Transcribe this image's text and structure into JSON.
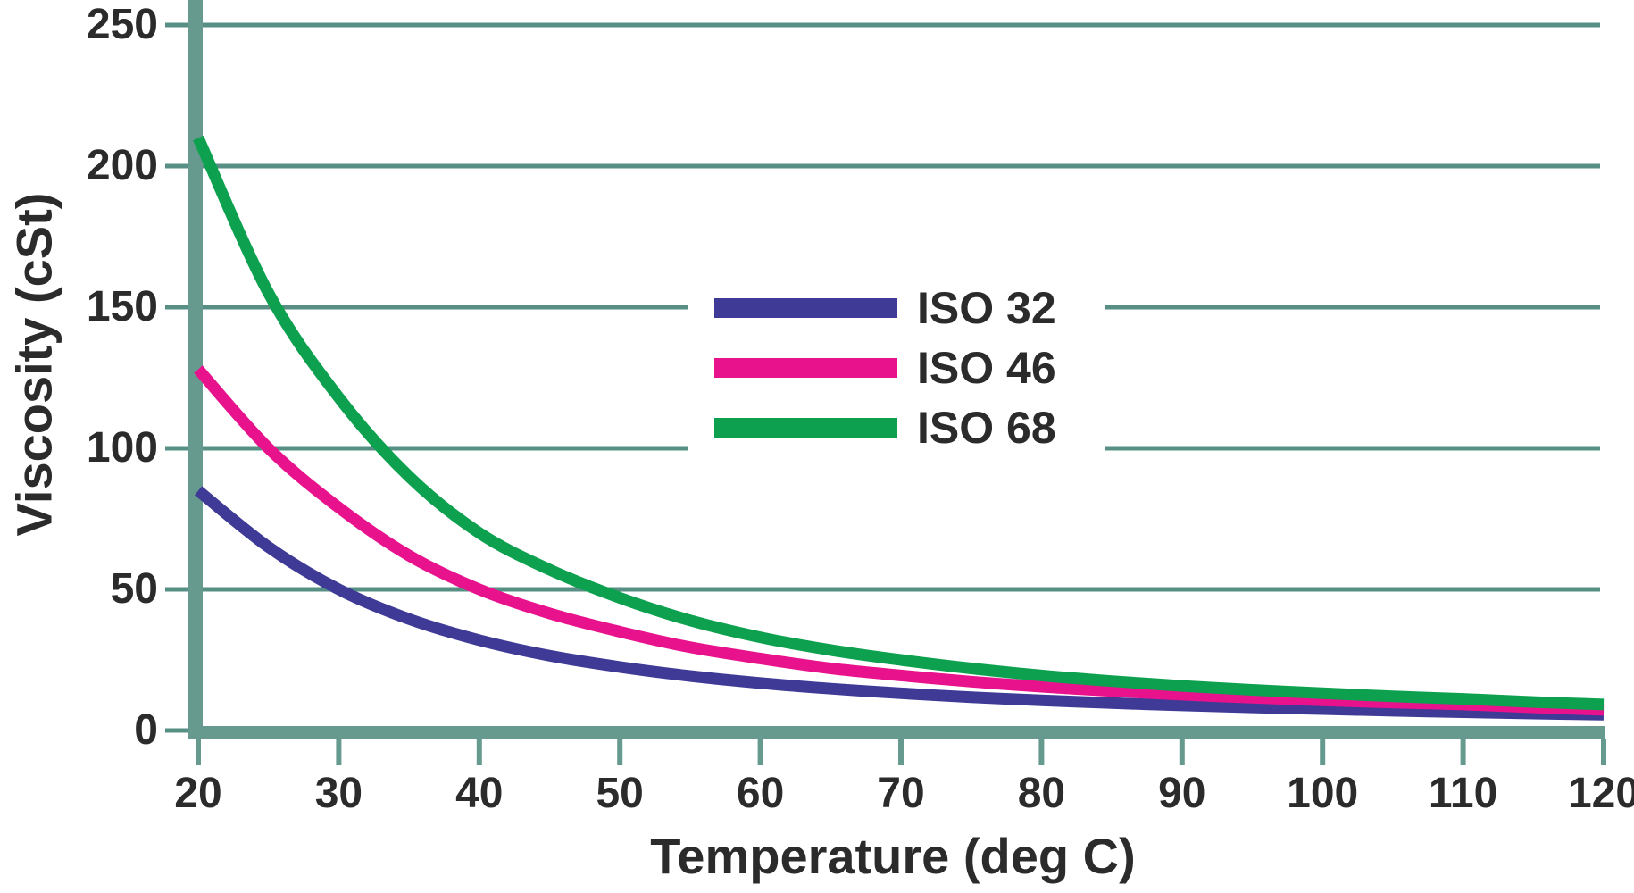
{
  "chart_data": {
    "type": "line",
    "title": "",
    "xlabel": "Temperature (deg C)",
    "ylabel": "Viscosity (cSt)",
    "xlim": [
      20,
      120
    ],
    "ylim": [
      0,
      250
    ],
    "xticks": [
      20,
      30,
      40,
      50,
      60,
      70,
      80,
      90,
      100,
      110,
      120
    ],
    "yticks": [
      0,
      50,
      100,
      150,
      200,
      250
    ],
    "grid": "horizontal",
    "legend_position": "upper-center",
    "x": [
      20,
      25,
      30,
      35,
      40,
      45,
      50,
      55,
      60,
      65,
      70,
      75,
      80,
      85,
      90,
      95,
      100,
      105,
      110,
      115,
      120
    ],
    "series": [
      {
        "name": "ISO 32",
        "color": "#3E3A96",
        "values": [
          85,
          65,
          50,
          39.5,
          32,
          26.5,
          22.5,
          19.3,
          16.8,
          14.8,
          13.2,
          11.8,
          10.7,
          9.7,
          8.9,
          8.2,
          7.6,
          7.0,
          6.5,
          6.0,
          5.6
        ]
      },
      {
        "name": "ISO 46",
        "color": "#E8128C",
        "values": [
          128,
          100,
          79,
          62,
          50,
          41.5,
          35,
          29.5,
          25.5,
          22,
          19.5,
          17.3,
          15.5,
          14,
          12.7,
          11.6,
          10.7,
          9.9,
          9.2,
          8.2,
          7.3
        ]
      },
      {
        "name": "ISO 68",
        "color": "#0DA14F",
        "values": [
          210,
          155,
          118,
          90,
          70,
          57,
          47,
          39,
          33,
          28.5,
          25,
          22,
          19.5,
          17.5,
          15.8,
          14.4,
          13.2,
          12.1,
          11.2,
          10.1,
          9.2
        ]
      }
    ]
  },
  "colors": {
    "axis_bar": "#679A8E",
    "gridline": "#578F85",
    "tick_mark": "#679A8E",
    "text": "#2B2B2B",
    "background": "#FFFFFF"
  }
}
